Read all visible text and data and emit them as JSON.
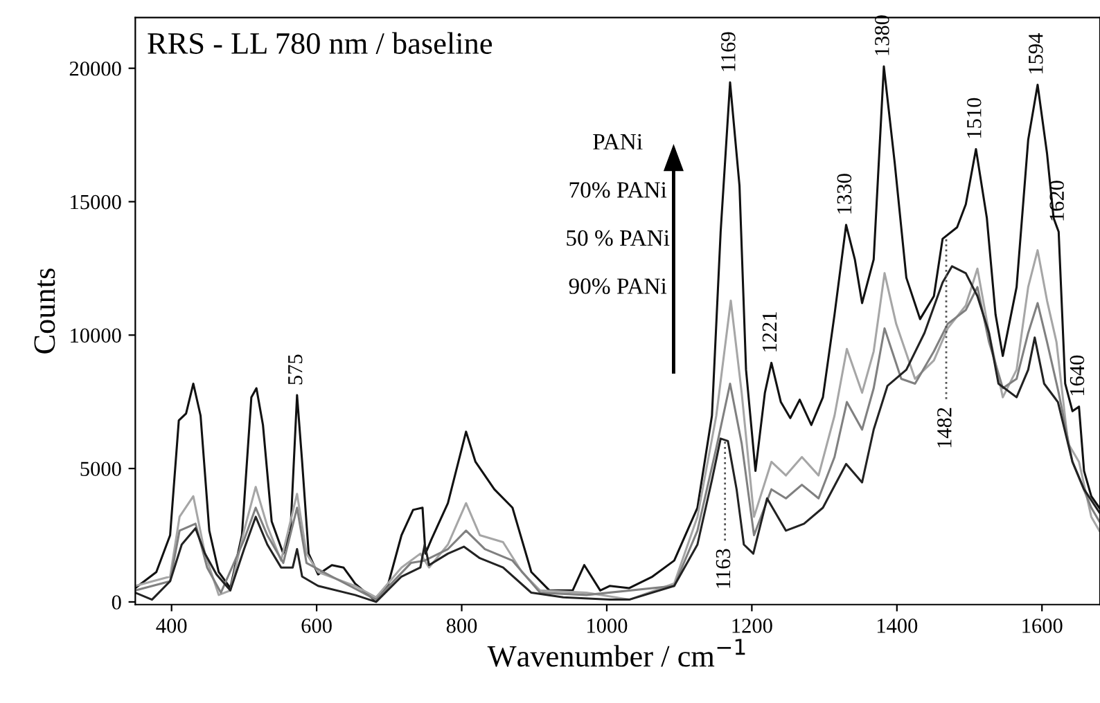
{
  "chart_data": {
    "type": "line",
    "title": "RRS - LL 780 nm / baseline",
    "xlabel": "Wavenumber / cm$^{−1}$",
    "ylabel": "Counts",
    "xlim": [
      350,
      1680
    ],
    "ylim": [
      -100,
      21900
    ],
    "xticks": [
      400,
      600,
      800,
      1000,
      1200,
      1400,
      1600
    ],
    "yticks": [
      0,
      5000,
      10000,
      15000,
      20000
    ],
    "grid": false,
    "legend": false,
    "line_style": "solid",
    "marker": "none",
    "annotations": [
      "PANi",
      "70% PANi",
      "50 % PANi",
      "90% PANi",
      {
        "text": "1169",
        "x": 1170,
        "y": 19470
      },
      {
        "text": "1380",
        "x": 1382,
        "y": 20070
      },
      {
        "text": "1594",
        "x": 1594,
        "y": 19380
      },
      {
        "text": "1510",
        "x": 1509,
        "y": 16970
      },
      {
        "text": "1330",
        "x": 1330,
        "y": 14130
      },
      {
        "text": "1620",
        "x": 1623,
        "y": 13870
      },
      {
        "text": "1221",
        "x": 1227,
        "y": 8960
      },
      {
        "text": "1640",
        "x": 1651,
        "y": 7320
      },
      {
        "text": "575",
        "x": 573,
        "y": 7750
      },
      {
        "text": "1482",
        "x": 1468,
        "y": 7600
      },
      {
        "text": "1163",
        "x": 1163,
        "y": 2300
      }
    ],
    "series": [
      {
        "color": "#111111",
        "x": [
          350,
          379,
          398,
          410,
          420,
          430,
          440,
          452,
          465,
          481,
          497,
          510,
          517,
          526,
          538,
          554,
          564,
          573,
          580,
          589,
          602,
          621,
          637,
          653,
          679,
          698,
          717,
          733,
          746,
          750,
          758,
          781,
          806,
          819,
          845,
          870,
          896,
          921,
          953,
          969,
          991,
          1004,
          1031,
          1063,
          1093,
          1125,
          1145,
          1157,
          1170,
          1183,
          1192,
          1205,
          1218,
          1227,
          1240,
          1253,
          1266,
          1282,
          1298,
          1314,
          1330,
          1342,
          1352,
          1368,
          1382,
          1397,
          1413,
          1432,
          1451,
          1463,
          1483,
          1495,
          1509,
          1524,
          1536,
          1546,
          1565,
          1581,
          1594,
          1607,
          1616,
          1623,
          1632,
          1642,
          1651,
          1658,
          1668,
          1679
        ],
        "values": [
          517,
          1120,
          2500,
          6800,
          7060,
          8180,
          6980,
          2670,
          1120,
          517,
          2500,
          7670,
          8010,
          6630,
          3020,
          1810,
          2670,
          7750,
          5250,
          1810,
          1030,
          1380,
          1290,
          690,
          86,
          600,
          2500,
          3450,
          3530,
          1810,
          2330,
          3700,
          6380,
          5250,
          4220,
          3530,
          1120,
          430,
          430,
          1380,
          430,
          600,
          517,
          950,
          1550,
          3530,
          6980,
          13870,
          19470,
          15590,
          8700,
          4910,
          7840,
          8960,
          7490,
          6890,
          7580,
          6630,
          7670,
          10770,
          14130,
          12840,
          11200,
          12840,
          20070,
          16450,
          12150,
          10600,
          11460,
          13610,
          14040,
          14900,
          16970,
          14390,
          10770,
          9220,
          11800,
          17320,
          19380,
          16800,
          14390,
          13870,
          8180,
          7150,
          7320,
          4910,
          3960,
          3530
        ]
      },
      {
        "color": "#a6a6a6",
        "x": [
          350,
          398,
          411,
          430,
          446,
          465,
          481,
          500,
          516,
          532,
          551,
          573,
          586,
          602,
          653,
          682,
          717,
          743,
          755,
          781,
          806,
          825,
          857,
          883,
          908,
          972,
          1031,
          1093,
          1125,
          1151,
          1171,
          1186,
          1203,
          1227,
          1247,
          1269,
          1292,
          1314,
          1331,
          1352,
          1368,
          1383,
          1399,
          1425,
          1451,
          1470,
          1495,
          1511,
          1527,
          1546,
          1565,
          1581,
          1594,
          1607,
          1620,
          1636,
          1651,
          1668,
          1679
        ],
        "values": [
          600,
          950,
          3190,
          3960,
          1810,
          260,
          430,
          2670,
          4310,
          2840,
          1550,
          4050,
          1810,
          1120,
          600,
          170,
          1290,
          1810,
          1290,
          2150,
          3700,
          2500,
          2240,
          1120,
          430,
          345,
          86,
          690,
          3190,
          6980,
          11290,
          7840,
          3190,
          5250,
          4740,
          5430,
          4740,
          6980,
          9480,
          7840,
          9390,
          12320,
          10420,
          8360,
          9050,
          10250,
          11110,
          12490,
          10080,
          7670,
          8700,
          11800,
          13180,
          11290,
          9740,
          5940,
          5250,
          3190,
          2670
        ]
      },
      {
        "color": "#808080",
        "x": [
          350,
          398,
          411,
          433,
          449,
          468,
          500,
          516,
          532,
          554,
          573,
          586,
          621,
          682,
          730,
          749,
          781,
          806,
          832,
          870,
          908,
          972,
          1093,
          1125,
          1151,
          1170,
          1186,
          1203,
          1227,
          1247,
          1269,
          1292,
          1314,
          1331,
          1352,
          1368,
          1383,
          1406,
          1425,
          1451,
          1470,
          1495,
          1511,
          1527,
          1546,
          1565,
          1581,
          1594,
          1607,
          1623,
          1642,
          1668,
          1679
        ],
        "values": [
          430,
          775,
          2670,
          2930,
          1290,
          345,
          2330,
          3530,
          2500,
          1460,
          3530,
          1460,
          950,
          86,
          1460,
          1550,
          1980,
          2670,
          1980,
          1550,
          345,
          260,
          600,
          2670,
          5770,
          8180,
          5940,
          2500,
          4220,
          3880,
          4390,
          3880,
          5430,
          7490,
          6460,
          8010,
          10250,
          8360,
          8180,
          9390,
          10420,
          10940,
          11800,
          9740,
          8010,
          8360,
          10080,
          11200,
          9740,
          7840,
          5250,
          3530,
          3020
        ]
      },
      {
        "color": "#222222",
        "x": [
          350,
          373,
          398,
          414,
          433,
          446,
          462,
          481,
          500,
          516,
          532,
          551,
          567,
          573,
          580,
          602,
          653,
          682,
          717,
          743,
          749,
          755,
          781,
          803,
          825,
          857,
          896,
          940,
          1004,
          1031,
          1093,
          1125,
          1145,
          1157,
          1167,
          1179,
          1189,
          1202,
          1221,
          1247,
          1272,
          1298,
          1330,
          1352,
          1368,
          1387,
          1413,
          1438,
          1463,
          1476,
          1495,
          1511,
          1527,
          1540,
          1565,
          1581,
          1590,
          1603,
          1622,
          1642,
          1658,
          1679
        ],
        "values": [
          345,
          86,
          775,
          2150,
          2760,
          1810,
          1030,
          430,
          1980,
          3190,
          2150,
          1290,
          1290,
          1980,
          950,
          600,
          260,
          0,
          950,
          1290,
          2150,
          1380,
          1810,
          2070,
          1640,
          1290,
          345,
          170,
          86,
          86,
          600,
          2150,
          4570,
          6120,
          6030,
          4220,
          2150,
          1810,
          3880,
          2670,
          2930,
          3530,
          5170,
          4480,
          6460,
          8100,
          8700,
          10080,
          11970,
          12580,
          12320,
          11460,
          10080,
          8180,
          7670,
          8700,
          9910,
          8180,
          7490,
          5250,
          4220,
          3360
        ]
      },
      {
        "color": "#555555",
        "line_style": "dotted",
        "x": [
          1163,
          1163
        ],
        "values": [
          2300,
          6000
        ]
      },
      {
        "color": "#555555",
        "line_style": "dotted",
        "x": [
          1468,
          1468
        ],
        "values": [
          7600,
          13700
        ]
      }
    ]
  }
}
